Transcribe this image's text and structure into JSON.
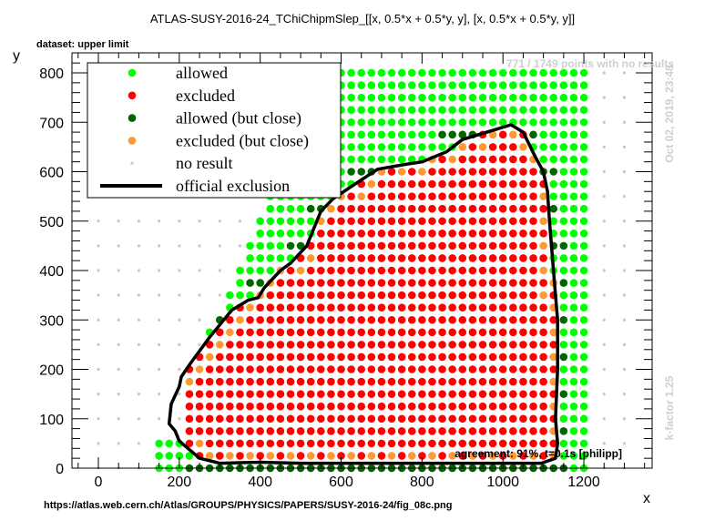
{
  "chart_data": {
    "type": "scatter",
    "title": "ATLAS-SUSY-2016-24_TChiChipmSlep_[[x, 0.5*x + 0.5*y, y], [x, 0.5*x + 0.5*y, y]]",
    "subtitle": "dataset: upper limit",
    "xlabel": "x",
    "ylabel": "y",
    "xlim": [
      -50,
      1360
    ],
    "ylim": [
      0,
      830
    ],
    "xticks": [
      "0",
      "200",
      "400",
      "600",
      "800",
      "1000",
      "1200"
    ],
    "yticks": [
      "0",
      "100",
      "200",
      "300",
      "400",
      "500",
      "600",
      "700",
      "800"
    ],
    "grid": false,
    "legend_position": "top-left",
    "legend": [
      {
        "label": "allowed",
        "color": "#00ff00",
        "kind": "marker"
      },
      {
        "label": "excluded",
        "color": "#ff0000",
        "kind": "marker"
      },
      {
        "label": "allowed (but close)",
        "color": "#006600",
        "kind": "marker"
      },
      {
        "label": "excluded (but close)",
        "color": "#ff9933",
        "kind": "marker"
      },
      {
        "label": "no result",
        "color": "#c8c8c8",
        "kind": "marker"
      },
      {
        "label": "official exclusion",
        "color": "#000000",
        "kind": "line"
      }
    ],
    "colors": {
      "allowed": "#00ff00",
      "excluded": "#ff0000",
      "allowed_close": "#006600",
      "excluded_close": "#ff9933",
      "no_result": "#c8c8c8"
    },
    "grid_points": {
      "valid_x_step": 25,
      "valid_y_step": 25,
      "noresult_x_step": 50,
      "noresult_y_step": 50
    },
    "official_exclusion": [
      [
        300,
        10
      ],
      [
        250,
        20
      ],
      [
        200,
        55
      ],
      [
        190,
        75
      ],
      [
        175,
        90
      ],
      [
        180,
        130
      ],
      [
        200,
        165
      ],
      [
        205,
        185
      ],
      [
        230,
        215
      ],
      [
        275,
        265
      ],
      [
        330,
        320
      ],
      [
        370,
        340
      ],
      [
        395,
        345
      ],
      [
        410,
        365
      ],
      [
        450,
        400
      ],
      [
        475,
        415
      ],
      [
        515,
        450
      ],
      [
        550,
        520
      ],
      [
        580,
        545
      ],
      [
        625,
        570
      ],
      [
        690,
        605
      ],
      [
        760,
        615
      ],
      [
        800,
        620
      ],
      [
        860,
        640
      ],
      [
        900,
        665
      ],
      [
        980,
        685
      ],
      [
        1000,
        690
      ],
      [
        1020,
        695
      ],
      [
        1050,
        680
      ],
      [
        1080,
        630
      ],
      [
        1100,
        600
      ],
      [
        1110,
        560
      ],
      [
        1115,
        500
      ],
      [
        1120,
        450
      ],
      [
        1125,
        400
      ],
      [
        1130,
        350
      ],
      [
        1135,
        300
      ],
      [
        1135,
        200
      ],
      [
        1130,
        100
      ],
      [
        1135,
        50
      ],
      [
        1130,
        20
      ],
      [
        1095,
        10
      ],
      [
        900,
        10
      ],
      [
        700,
        10
      ],
      [
        500,
        10
      ],
      [
        400,
        12
      ],
      [
        300,
        10
      ]
    ],
    "annotations": {
      "no_results": "771 / 1749 points with no results",
      "timestamp": "Oct 02, 2019, 23:48",
      "kfactor": "k-factor 1.25",
      "agreement": "agreement: 91%, t=0.1s [philipp]",
      "source_url": "https://atlas.web.cern.ch/Atlas/GROUPS/PHYSICS/PAPERS/SUSY-2016-24/fig_08c.png"
    }
  }
}
